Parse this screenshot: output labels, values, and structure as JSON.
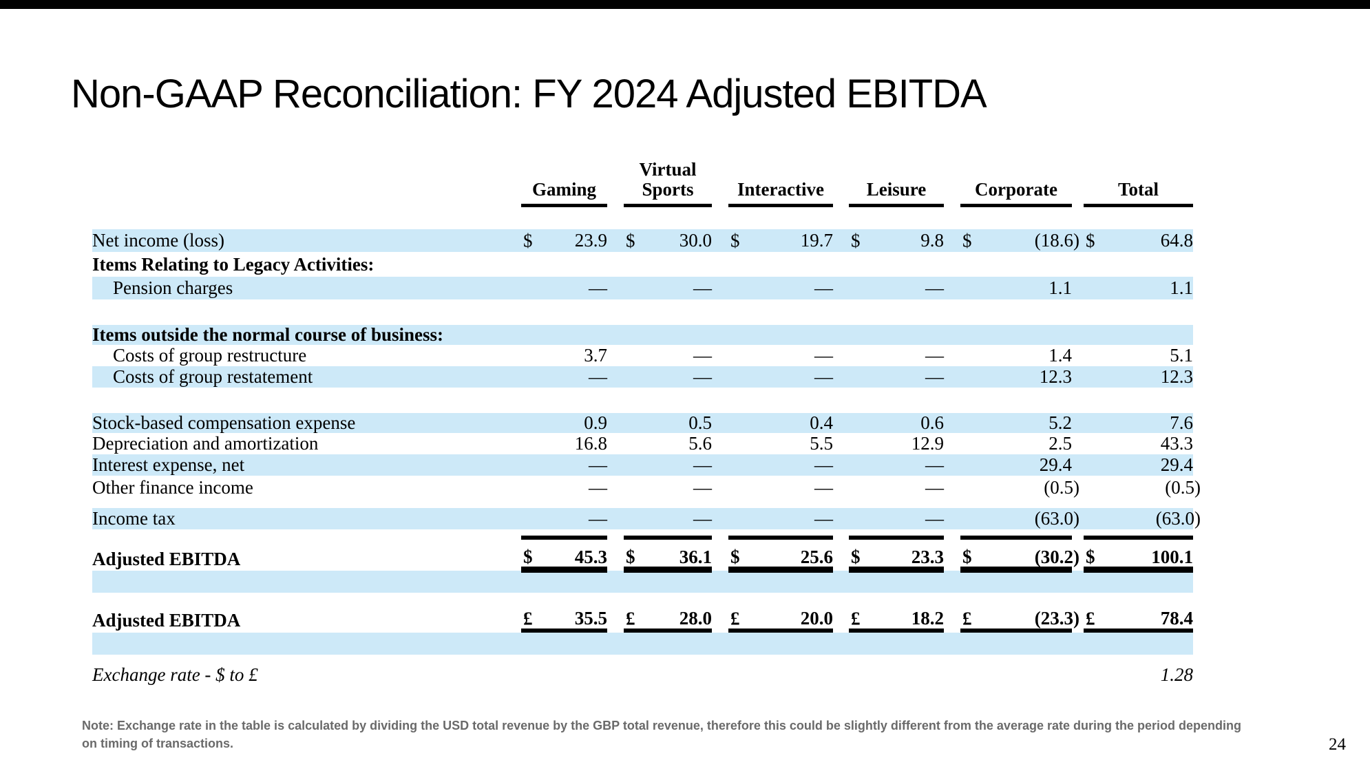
{
  "slide": {
    "title": "Non-GAAP Reconciliation: FY 2024 Adjusted EBITDA",
    "page_number": "24",
    "note": "Note: Exchange rate in the table is calculated by dividing the USD total revenue by the GBP total revenue, therefore this could be slightly different from the average rate during the period depending on timing of transactions."
  },
  "colors": {
    "band": "#cde9f8",
    "note_text": "#6a6a6a",
    "rule": "#000000"
  },
  "table": {
    "columns": [
      "Gaming",
      "Virtual Sports",
      "Interactive",
      "Leisure",
      "Corporate",
      "Total"
    ],
    "rows": [
      {
        "type": "data",
        "label": "Net income (loss)",
        "band": true,
        "currency": "$",
        "values": [
          "23.9",
          "30.0",
          "19.7",
          "9.8",
          "(18.6)",
          "64.8"
        ],
        "size": "h33"
      },
      {
        "type": "section",
        "label": "Items Relating to Legacy Activities:",
        "band": false,
        "size": "h36"
      },
      {
        "type": "data",
        "label": "Pension charges",
        "indent": true,
        "band": true,
        "values": [
          "—",
          "—",
          "—",
          "—",
          "1.1",
          "1.1"
        ],
        "size": "h33"
      },
      {
        "type": "spacer",
        "size": "sp-large"
      },
      {
        "type": "section",
        "label": "Items outside the normal course of business:",
        "band": true,
        "size": "h29"
      },
      {
        "type": "data",
        "label": "Costs of group restructure",
        "indent": true,
        "band": false,
        "values": [
          "3.7",
          "—",
          "—",
          "—",
          "1.4",
          "5.1"
        ],
        "size": "h31"
      },
      {
        "type": "data",
        "label": "Costs of group restatement",
        "indent": true,
        "band": true,
        "values": [
          "—",
          "—",
          "—",
          "—",
          "12.3",
          "12.3"
        ],
        "size": "h31"
      },
      {
        "type": "spacer",
        "size": "sp-large"
      },
      {
        "type": "data",
        "label": "Stock-based compensation expense",
        "band": true,
        "values": [
          "0.9",
          "0.5",
          "0.4",
          "0.6",
          "5.2",
          "7.6"
        ],
        "size": "h29"
      },
      {
        "type": "data",
        "label": "Depreciation and amortization",
        "band": false,
        "values": [
          "16.8",
          "5.6",
          "5.5",
          "12.9",
          "2.5",
          "43.3"
        ],
        "size": "h31"
      },
      {
        "type": "data",
        "label": "Interest expense, net",
        "band": true,
        "values": [
          "—",
          "—",
          "—",
          "—",
          "29.4",
          "29.4"
        ],
        "size": "h31"
      },
      {
        "type": "data",
        "label": "Other finance income",
        "band": false,
        "values": [
          "—",
          "—",
          "—",
          "—",
          "(0.5)",
          "(0.5)"
        ],
        "size": "h34"
      },
      {
        "type": "spacer",
        "size": "sp-small"
      },
      {
        "type": "data",
        "label": "Income tax",
        "band": true,
        "values": [
          "—",
          "—",
          "—",
          "—",
          "(63.0)",
          "(63.0)"
        ],
        "size": "h31"
      },
      {
        "type": "rule"
      },
      {
        "type": "data",
        "label": "Adjusted EBITDA",
        "bold": true,
        "band": false,
        "currency": "$",
        "values": [
          "45.3",
          "36.1",
          "25.6",
          "23.3",
          "(30.2)",
          "100.1"
        ],
        "size": "h34",
        "margin": "mt11",
        "underline": "double"
      },
      {
        "type": "bandfill"
      },
      {
        "type": "data",
        "label": "Adjusted EBITDA",
        "bold": true,
        "band": false,
        "currency": "£",
        "values": [
          "35.5",
          "28.0",
          "20.0",
          "18.2",
          "(23.3)",
          "78.4"
        ],
        "size": "h35",
        "margin": "mt23",
        "underline": "single"
      },
      {
        "type": "bandfill"
      },
      {
        "type": "data",
        "label": "Exchange rate - $ to £",
        "italic": true,
        "band": false,
        "values": [
          "",
          "",
          "",
          "",
          "",
          "1.28"
        ],
        "size": "h33",
        "margin": "mt13"
      }
    ]
  }
}
